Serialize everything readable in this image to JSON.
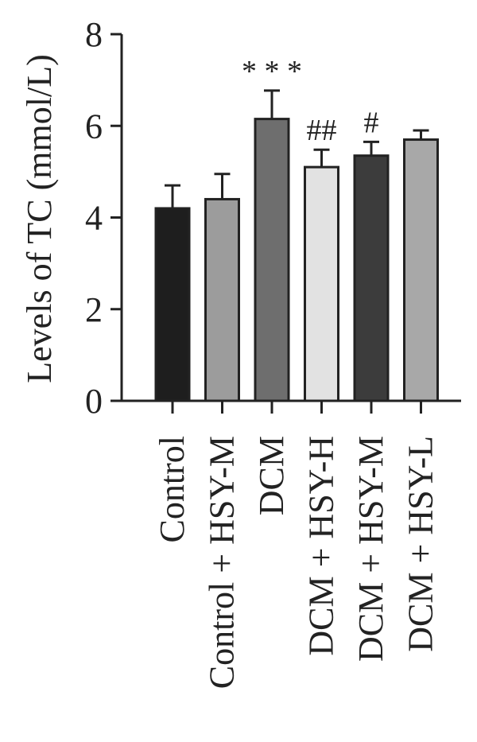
{
  "chart_data": {
    "type": "bar",
    "title": "",
    "xlabel": "",
    "ylabel": "Levels of TC (mmol/L)",
    "ylim": [
      0,
      8
    ],
    "yticks": [
      0,
      2,
      4,
      6,
      8
    ],
    "grid": false,
    "categories": [
      "Control",
      "Control + HSY-M",
      "DCM",
      "DCM + HSY-H",
      "DCM + HSY-M",
      "DCM + HSY-L"
    ],
    "values": [
      4.2,
      4.4,
      6.15,
      5.1,
      5.35,
      5.7
    ],
    "errors": [
      0.5,
      0.55,
      0.62,
      0.38,
      0.3,
      0.2
    ],
    "colors": [
      "#1e1e1e",
      "#9c9c9c",
      "#6e6e6e",
      "#e2e2e2",
      "#3c3c3c",
      "#a8a8a8"
    ],
    "annotations": [
      "",
      "",
      "* * *",
      "##",
      "#",
      ""
    ]
  }
}
